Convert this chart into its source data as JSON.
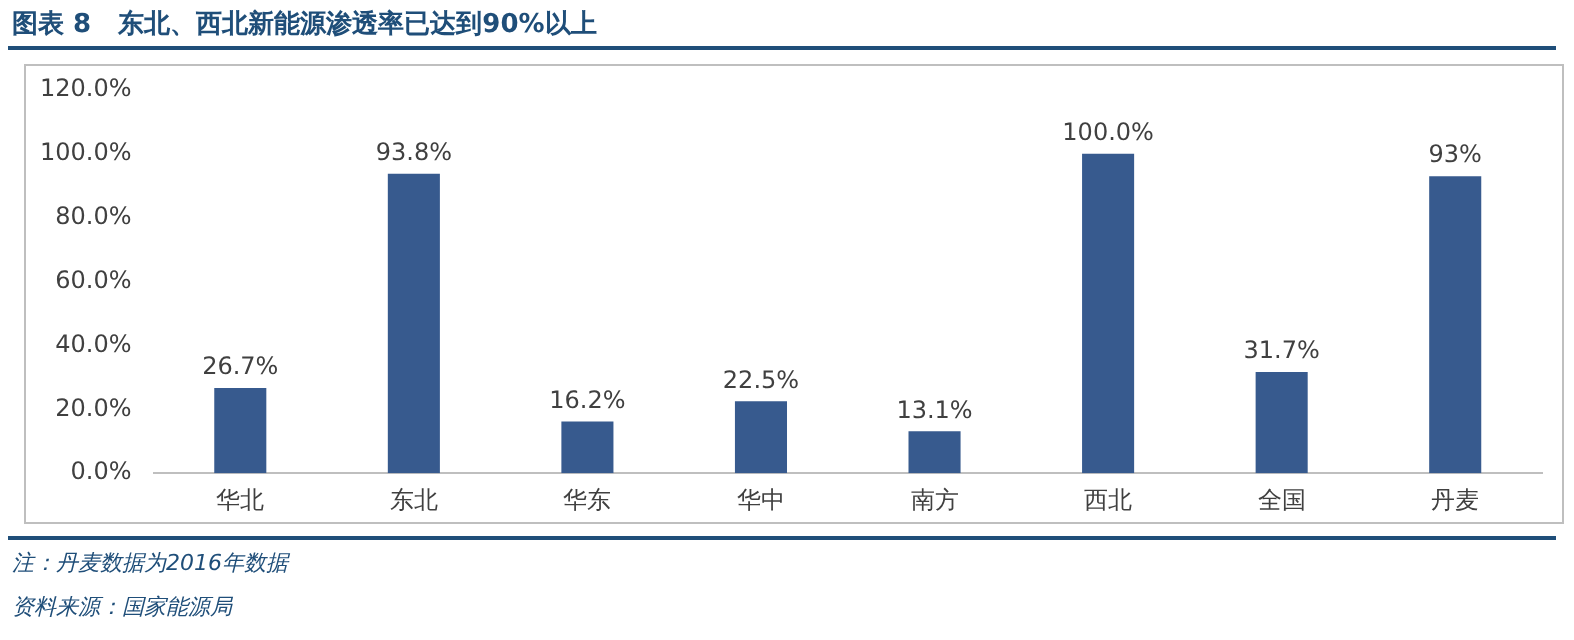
{
  "chart_data": {
    "type": "bar",
    "title": "图表 8   东北、西北新能源渗透率已达到90%以上",
    "categories": [
      "华北",
      "东北",
      "华东",
      "华中",
      "南方",
      "西北",
      "全国",
      "丹麦"
    ],
    "values": [
      26.7,
      93.8,
      16.2,
      22.5,
      13.1,
      100.0,
      31.7,
      93
    ],
    "value_labels": [
      "26.7%",
      "93.8%",
      "16.2%",
      "22.5%",
      "13.1%",
      "100.0%",
      "31.7%",
      "93%"
    ],
    "color": "#375a8e",
    "ylim": [
      0,
      120
    ],
    "yticks": [
      {
        "value": 0,
        "label": "0.0%"
      },
      {
        "value": 20,
        "label": "20.0%"
      },
      {
        "value": 40,
        "label": "40.0%"
      },
      {
        "value": 60,
        "label": "60.0%"
      },
      {
        "value": 80,
        "label": "80.0%"
      },
      {
        "value": 100,
        "label": "100.0%"
      },
      {
        "value": 120,
        "label": "120.0%"
      }
    ],
    "grid": false,
    "legend": false,
    "annotations": [
      "注：丹麦数据为2016年数据",
      "资料来源：国家能源局"
    ]
  }
}
